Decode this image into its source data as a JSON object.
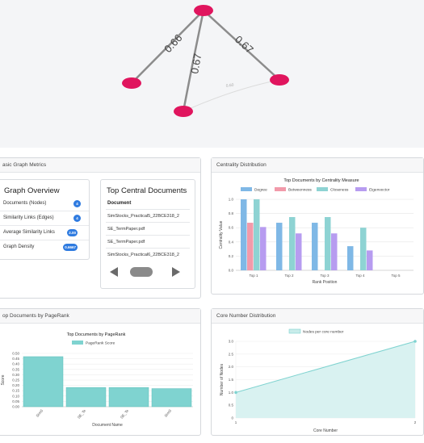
{
  "graph": {
    "edges": [
      {
        "label": "0.66",
        "color": "#8a8a8a"
      },
      {
        "label": "0.67",
        "color": "#8a8a8a"
      },
      {
        "label": "0.67",
        "color": "#8a8a8a"
      },
      {
        "label": "0.60",
        "color": "#d8d8d8"
      }
    ],
    "node_color": "#e0155e"
  },
  "metrics_panel": {
    "header": "asic Graph Metrics",
    "overview_title": "Graph Overview",
    "rows": [
      {
        "label": "Documents (Nodes)",
        "value": "4"
      },
      {
        "label": "Similarity Links (Edges)",
        "value": "4"
      },
      {
        "label": "Average Similarity Links",
        "value": "2.00"
      },
      {
        "label": "Graph Density",
        "value": "0.6667"
      }
    ],
    "central_title": "Top Central Documents",
    "document_header": "Document",
    "documents": [
      "SimStocks_Practical5_22BCE318_2",
      "SE_TermPaper.pdf",
      "SE_TermPaper.pdf",
      "SimStocks_Practical6_22BCE318_2"
    ]
  },
  "centrality_panel": {
    "header": "Centrality Distribution"
  },
  "pagerank_panel": {
    "header": "op Documents by PageRank"
  },
  "core_panel": {
    "header": "Core Number Distribution"
  },
  "chart_data": [
    {
      "type": "bar",
      "title": "Top Documents by Centrality Measure",
      "xlabel": "Rank Position",
      "ylabel": "Centrality Value",
      "categories": [
        "Top 1",
        "Top 2",
        "Top 3",
        "Top 4",
        "Top 5"
      ],
      "ylim": [
        0,
        1.0
      ],
      "yticks": [
        "0.0",
        "0.2",
        "0.4",
        "0.6",
        "0.8",
        "1.0"
      ],
      "series": [
        {
          "name": "Degree",
          "color": "#7fb8e6",
          "values": [
            1.0,
            0.67,
            0.67,
            0.34,
            0
          ]
        },
        {
          "name": "Betweenness",
          "color": "#f29aaa",
          "values": [
            0.67,
            0,
            0,
            0,
            0
          ]
        },
        {
          "name": "Closeness",
          "color": "#8ed3d3",
          "values": [
            1.0,
            0.75,
            0.75,
            0.6,
            0
          ]
        },
        {
          "name": "Eigenvector",
          "color": "#b79cf0",
          "values": [
            0.61,
            0.52,
            0.52,
            0.28,
            0
          ]
        }
      ]
    },
    {
      "type": "bar",
      "title": "Top Documents by PageRank",
      "xlabel": "Document Name",
      "ylabel": "Score",
      "legend": "PageRank Score",
      "color": "#7fd3d0",
      "categories": [
        "SimS",
        "SE_Te",
        "SE_Te",
        "SimS"
      ],
      "values": [
        0.47,
        0.18,
        0.18,
        0.17
      ],
      "ylim": [
        0,
        0.5
      ],
      "yticks": [
        "0.00",
        "0.05",
        "0.10",
        "0.15",
        "0.20",
        "0.25",
        "0.30",
        "0.35",
        "0.40",
        "0.45",
        "0.50"
      ]
    },
    {
      "type": "area",
      "legend": "Nodes per core number",
      "xlabel": "Core Number",
      "ylabel": "Number of Nodes",
      "color": "#7fd3d0",
      "x": [
        1,
        2
      ],
      "y": [
        1.0,
        3.0
      ],
      "ylim": [
        0,
        3.0
      ],
      "yticks": [
        "0",
        "0.5",
        "1.0",
        "1.5",
        "2.0",
        "2.5",
        "3.0"
      ],
      "xticks": [
        "1",
        "2"
      ]
    }
  ]
}
